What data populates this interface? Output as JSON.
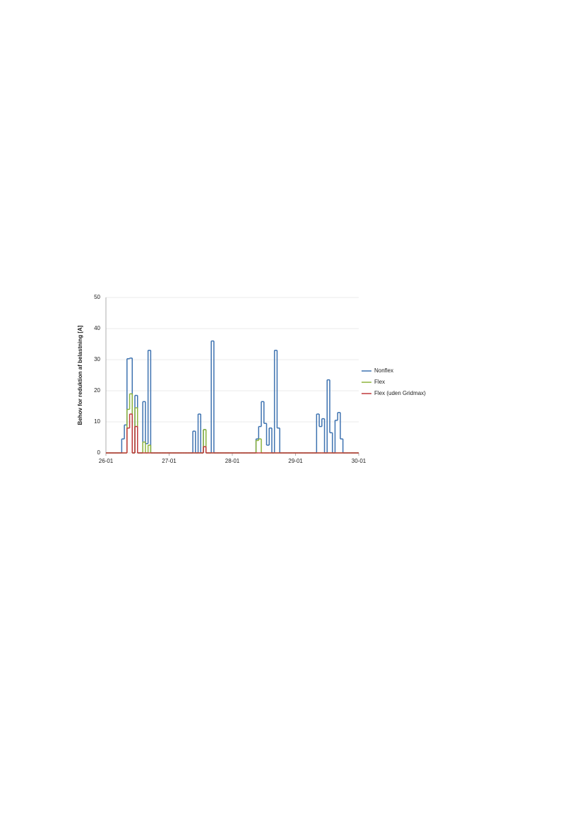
{
  "chart_data": {
    "type": "step",
    "y_label": "Behov for reduktion af belastning [A]",
    "x": [
      0,
      1,
      2,
      3,
      4,
      5,
      6,
      7,
      8,
      9,
      10,
      11,
      12,
      13,
      14,
      15,
      16,
      17,
      18,
      19,
      20,
      21,
      22,
      23,
      24,
      25,
      26,
      27,
      28,
      29,
      30,
      31,
      32,
      33,
      34,
      35,
      36,
      37,
      38,
      39,
      40,
      41,
      42,
      43,
      44,
      45,
      46,
      47,
      48,
      49,
      50,
      51,
      52,
      53,
      54,
      55,
      56,
      57,
      58,
      59,
      60,
      61,
      62,
      63,
      64,
      65,
      66,
      67,
      68,
      69,
      70,
      71,
      72,
      73,
      74,
      75,
      76,
      77,
      78,
      79,
      80,
      81,
      82,
      83,
      84,
      85,
      86,
      87,
      88,
      89,
      90,
      91,
      92,
      93,
      94,
      95,
      96
    ],
    "xlim": [
      0,
      96
    ],
    "xticks": [
      {
        "value": 0,
        "label": "26-01"
      },
      {
        "value": 24,
        "label": "27-01"
      },
      {
        "value": 48,
        "label": "28-01"
      },
      {
        "value": 72,
        "label": "29-01"
      },
      {
        "value": 96,
        "label": "30-01"
      }
    ],
    "ylim": [
      0,
      50
    ],
    "yticks": [
      0,
      10,
      20,
      30,
      40,
      50
    ],
    "grid": true,
    "legend": "right",
    "series": [
      {
        "name": "Nonflex",
        "color": "#3d72b0",
        "values": [
          0,
          0,
          0,
          0,
          0,
          0,
          4.5,
          9,
          30.3,
          30.5,
          0,
          18.5,
          0,
          0,
          16.5,
          3,
          33,
          0,
          0,
          0,
          0,
          0,
          0,
          0,
          0,
          0,
          0,
          0,
          0,
          0,
          0,
          0,
          0,
          7,
          0,
          12.5,
          0,
          7.5,
          0,
          0,
          36,
          0,
          0,
          0,
          0,
          0,
          0,
          0,
          0,
          0,
          0,
          0,
          0,
          0,
          0,
          0,
          0,
          4.5,
          8.5,
          16.5,
          9.5,
          2.5,
          8,
          0,
          33,
          8,
          0,
          0,
          0,
          0,
          0,
          0,
          0,
          0,
          0,
          0,
          0,
          0,
          0,
          0,
          12.5,
          8.5,
          11,
          0,
          23.5,
          6.5,
          0,
          10.5,
          13,
          4.5,
          0,
          0,
          0,
          0,
          0,
          0,
          0
        ]
      },
      {
        "name": "Flex",
        "color": "#8db43c",
        "values": [
          0,
          0,
          0,
          0,
          0,
          0,
          0,
          0,
          14,
          19,
          0,
          14.5,
          0,
          0,
          3.5,
          0,
          2.5,
          0,
          0,
          0,
          0,
          0,
          0,
          0,
          0,
          0,
          0,
          0,
          0,
          0,
          0,
          0,
          0,
          0,
          0,
          0,
          0,
          7.5,
          0,
          0,
          0,
          0,
          0,
          0,
          0,
          0,
          0,
          0,
          0,
          0,
          0,
          0,
          0,
          0,
          0,
          0,
          0,
          4,
          4.5,
          0,
          0,
          0,
          0,
          0,
          0,
          0,
          0,
          0,
          0,
          0,
          0,
          0,
          0,
          0,
          0,
          0,
          0,
          0,
          0,
          0,
          0,
          0,
          0,
          0,
          0,
          0,
          0,
          0,
          0,
          0,
          0,
          0,
          0,
          0,
          0,
          0,
          0
        ]
      },
      {
        "name": "Flex (uden Gridmax)",
        "color": "#c0393b",
        "values": [
          0,
          0,
          0,
          0,
          0,
          0,
          0,
          0,
          8,
          12.5,
          0,
          8.5,
          0,
          0,
          0,
          0,
          0,
          0,
          0,
          0,
          0,
          0,
          0,
          0,
          0,
          0,
          0,
          0,
          0,
          0,
          0,
          0,
          0,
          0,
          0,
          0,
          0,
          2,
          0,
          0,
          0,
          0,
          0,
          0,
          0,
          0,
          0,
          0,
          0,
          0,
          0,
          0,
          0,
          0,
          0,
          0,
          0,
          0,
          0,
          0,
          0,
          0,
          0,
          0,
          0,
          0,
          0,
          0,
          0,
          0,
          0,
          0,
          0,
          0,
          0,
          0,
          0,
          0,
          0,
          0,
          0,
          0,
          0,
          0,
          0,
          0,
          0,
          0,
          0,
          0,
          0,
          0,
          0,
          0,
          0,
          0,
          0
        ]
      }
    ]
  }
}
